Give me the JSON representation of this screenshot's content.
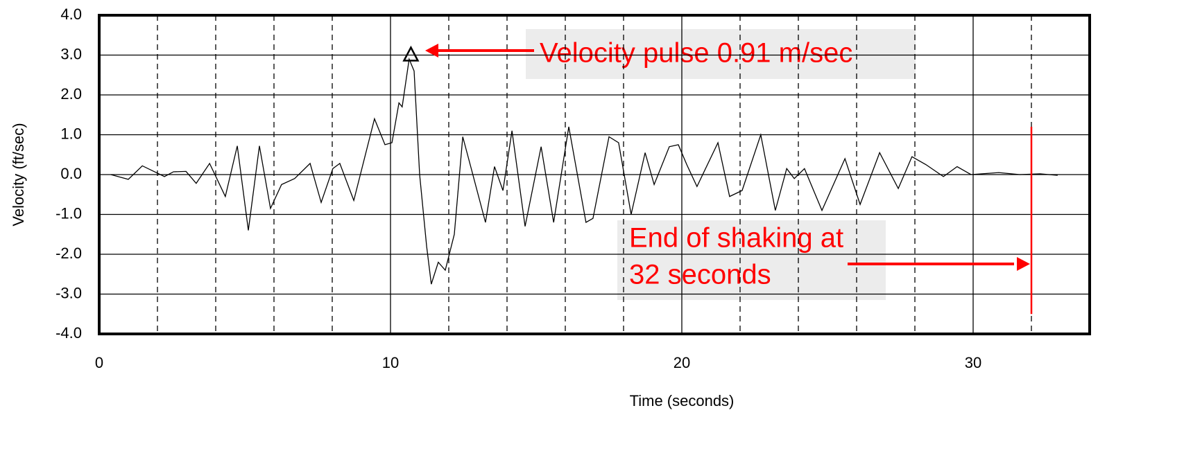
{
  "chart_data": {
    "type": "line",
    "xlabel": "Time (seconds)",
    "ylabel": "Velocity (ft/sec)",
    "xlim": [
      0,
      34
    ],
    "xticks": [
      0,
      10,
      20,
      30
    ],
    "xminor_ticks": [
      2,
      4,
      6,
      8,
      12,
      14,
      16,
      18,
      22,
      24,
      26,
      28,
      32
    ],
    "ylim": [
      -4,
      4
    ],
    "yticks": [
      {
        "value": -4,
        "label": "-4.0"
      },
      {
        "value": -3,
        "label": "-3.0"
      },
      {
        "value": -2,
        "label": "-2.0"
      },
      {
        "value": -1,
        "label": "-1.0"
      },
      {
        "value": 0,
        "label": "0.0"
      },
      {
        "value": 1,
        "label": "1.0"
      },
      {
        "value": 2,
        "label": "2.0"
      },
      {
        "value": 3,
        "label": "3.0"
      },
      {
        "value": 4,
        "label": "4.0"
      }
    ],
    "grid": true,
    "color": "#000000",
    "x": [
      0.4,
      1.0,
      1.48,
      2.24,
      2.55,
      2.98,
      3.33,
      3.79,
      4.33,
      4.74,
      5.12,
      5.5,
      5.88,
      6.26,
      6.71,
      7.24,
      7.62,
      8.02,
      8.26,
      8.74,
      9.45,
      9.81,
      10.05,
      10.29,
      10.4,
      10.64,
      10.81,
      11.0,
      11.24,
      11.4,
      11.64,
      11.88,
      12.19,
      12.48,
      12.79,
      13.26,
      13.57,
      13.86,
      14.17,
      14.62,
      15.17,
      15.6,
      16.12,
      16.71,
      16.95,
      17.5,
      17.83,
      18.26,
      18.74,
      19.05,
      19.57,
      19.88,
      20.17,
      20.52,
      21.24,
      21.64,
      22.07,
      22.71,
      23.21,
      23.6,
      23.86,
      24.21,
      24.81,
      25.6,
      26.12,
      26.79,
      27.43,
      27.9,
      28.38,
      28.98,
      29.45,
      29.93,
      30.88,
      31.6,
      32.3,
      32.9
    ],
    "values": [
      0.0,
      -0.12,
      0.22,
      -0.05,
      0.07,
      0.08,
      -0.22,
      0.28,
      -0.55,
      0.72,
      -1.4,
      0.72,
      -0.85,
      -0.25,
      -0.1,
      0.28,
      -0.7,
      0.15,
      0.28,
      -0.65,
      1.4,
      0.75,
      0.8,
      1.8,
      1.7,
      2.9,
      2.6,
      0.0,
      -1.8,
      -2.75,
      -2.2,
      -2.4,
      -1.5,
      0.95,
      0.1,
      -1.2,
      0.2,
      -0.4,
      1.1,
      -1.3,
      0.7,
      -1.2,
      1.2,
      -1.2,
      -1.1,
      0.95,
      0.8,
      -1.0,
      0.55,
      -0.25,
      0.7,
      0.75,
      0.25,
      -0.3,
      0.8,
      -0.55,
      -0.4,
      1.0,
      -0.9,
      0.15,
      -0.1,
      0.15,
      -0.9,
      0.4,
      -0.75,
      0.55,
      -0.35,
      0.45,
      0.25,
      -0.05,
      0.2,
      0.0,
      0.05,
      0.0,
      0.02,
      -0.02
    ],
    "peak_marker": {
      "x": 10.7,
      "y": 3.0
    },
    "end_line": {
      "x": 32,
      "y": [
        1.2,
        -3.5
      ],
      "color": "#ff0000"
    },
    "annotations": [
      "Velocity pulse 0.91 m/sec",
      "End of shaking at",
      "32 seconds"
    ]
  }
}
